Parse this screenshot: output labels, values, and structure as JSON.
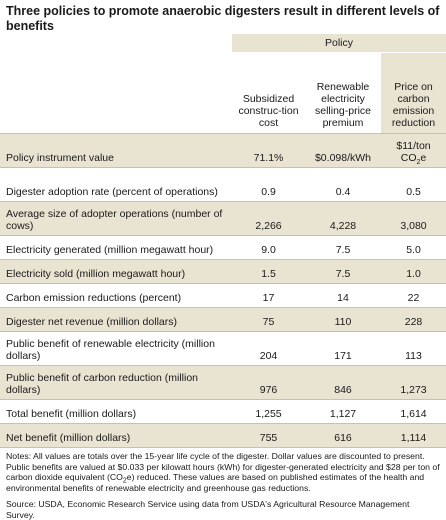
{
  "title": "Three policies to promote anaerobic digesters result in different levels of benefits",
  "group_header": "Policy",
  "columns": [
    "Subsidized construc-tion cost",
    "Renewable electricity selling-price premium",
    "Price on carbon emission reduction"
  ],
  "rows": [
    {
      "label": "Policy instrument value",
      "values": [
        "71.1%",
        "$0.098/kWh",
        "$11/ton CO2e"
      ]
    },
    {
      "label": "Digester adoption rate (percent of operations)",
      "values": [
        "0.9",
        "0.4",
        "0.5"
      ]
    },
    {
      "label": "Average size of adopter operations (number of cows)",
      "values": [
        "2,266",
        "4,228",
        "3,080"
      ]
    },
    {
      "label": "Electricity generated (million megawatt hour)",
      "values": [
        "9.0",
        "7.5",
        "5.0"
      ]
    },
    {
      "label": "Electricity sold (million megawatt hour)",
      "values": [
        "1.5",
        "7.5",
        "1.0"
      ]
    },
    {
      "label": "Carbon emission reductions (percent)",
      "values": [
        "17",
        "14",
        "22"
      ]
    },
    {
      "label": "Digester net revenue (million dollars)",
      "values": [
        "75",
        "110",
        "228"
      ]
    },
    {
      "label": "Public benefit of renewable electricity (million dollars)",
      "values": [
        "204",
        "171",
        "113"
      ]
    },
    {
      "label": "Public benefit of carbon reduction (million dollars)",
      "values": [
        "976",
        "846",
        "1,273"
      ]
    },
    {
      "label": "Total benefit (million dollars)",
      "values": [
        "1,255",
        "1,127",
        "1,614"
      ]
    },
    {
      "label": "Net benefit (million dollars)",
      "values": [
        "755",
        "616",
        "1,114"
      ]
    }
  ],
  "notes": "Notes: All values are totals over the 15-year life cycle of the digester. Dollar values are discounted to present. Public benefits are valued at $0.033 per kilowatt hours (kWh) for digester-generated electricity and $28 per ton of carbon dioxide equivalent (CO2e) reduced. These values are based on published estimates of the health and environmental benefits of renewable electricity and greenhouse gas reductions.",
  "source": "Source: USDA, Economic Research Service using data from USDA's Agricultural Resource Management Survey.",
  "colors": {
    "shade": "#e9e3d2",
    "rule": "#c9c2aa"
  }
}
